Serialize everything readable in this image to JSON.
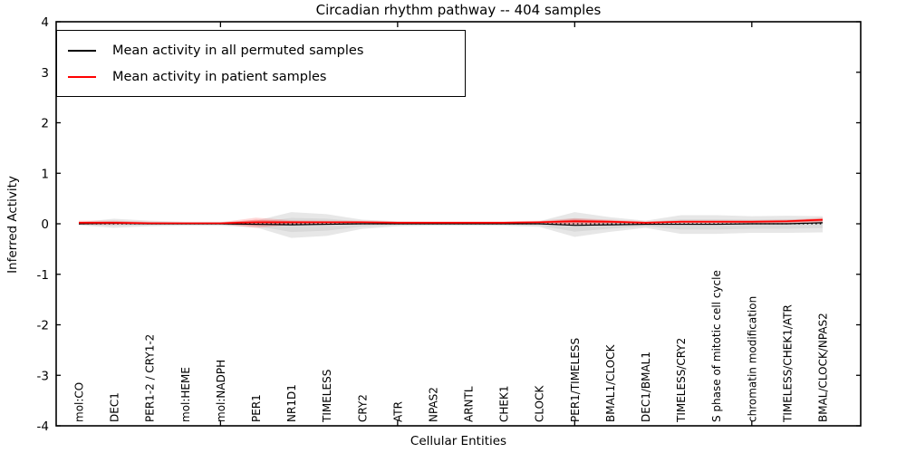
{
  "figure": {
    "title": "Circadian rhythm pathway -- 404 samples",
    "xlabel": "Cellular Entities",
    "ylabel": "Inferred Activity"
  },
  "legend": {
    "items": [
      {
        "label": "Mean activity in all permuted samples",
        "color": "#000000"
      },
      {
        "label": "Mean activity in patient samples",
        "color": "#ff0000"
      }
    ]
  },
  "chart_data": {
    "type": "line",
    "title": "Circadian rhythm pathway -- 404 samples",
    "xlabel": "Cellular Entities",
    "ylabel": "Inferred Activity",
    "ylim": [
      -4,
      4
    ],
    "yticks": [
      -4,
      -3,
      -2,
      -1,
      0,
      1,
      2,
      3,
      4
    ],
    "grid": false,
    "legend_position": "upper left",
    "categories": [
      "mol:CO",
      "DEC1",
      "PER1-2 / CRY1-2",
      "mol:HEME",
      "mol:NADPH",
      "PER1",
      "NR1D1",
      "TIMELESS",
      "CRY2",
      "ATR",
      "NPAS2",
      "ARNTL",
      "CHEK1",
      "CLOCK",
      "PER1/TIMELESS",
      "BMAL1/CLOCK",
      "DEC1/BMAL1",
      "TIMELESS/CRY2",
      "S phase of mitotic cell cycle",
      "chromatin modification",
      "TIMELESS/CHEK1/ATR",
      "BMAL/CLOCK/NPAS2"
    ],
    "series": [
      {
        "name": "Mean activity in all permuted samples",
        "color": "#000000",
        "values": [
          0.0,
          0.01,
          0.0,
          0.0,
          0.0,
          -0.01,
          -0.02,
          -0.01,
          0.0,
          0.0,
          0.0,
          0.0,
          0.0,
          0.0,
          -0.03,
          -0.02,
          -0.01,
          -0.01,
          -0.01,
          0.0,
          0.0,
          0.02
        ]
      },
      {
        "name": "Mean activity in patient samples",
        "color": "#ff0000",
        "values": [
          0.02,
          0.02,
          0.01,
          0.01,
          0.01,
          0.03,
          0.03,
          0.03,
          0.03,
          0.02,
          0.02,
          0.02,
          0.02,
          0.03,
          0.05,
          0.04,
          0.02,
          0.04,
          0.04,
          0.04,
          0.05,
          0.08
        ]
      }
    ],
    "bands": [
      {
        "name": "permuted-std-band",
        "color": "#e7e7e7",
        "inner_color": "#d9d9d9",
        "upper": [
          0.03,
          0.1,
          0.06,
          0.04,
          0.04,
          0.06,
          0.23,
          0.19,
          0.08,
          0.05,
          0.04,
          0.04,
          0.04,
          0.05,
          0.23,
          0.13,
          0.06,
          0.17,
          0.17,
          0.15,
          0.16,
          0.15
        ],
        "lower": [
          -0.03,
          -0.08,
          -0.05,
          -0.04,
          -0.04,
          -0.07,
          -0.28,
          -0.24,
          -0.1,
          -0.05,
          -0.04,
          -0.04,
          -0.04,
          -0.06,
          -0.26,
          -0.16,
          -0.08,
          -0.2,
          -0.2,
          -0.18,
          -0.18,
          -0.17
        ]
      },
      {
        "name": "patient-std-band",
        "color": "rgba(255,0,0,0.16)",
        "inner_color": "rgba(255,0,0,0.30)",
        "upper": [
          0.06,
          0.06,
          0.04,
          0.03,
          0.03,
          0.12,
          0.07,
          0.06,
          0.06,
          0.05,
          0.05,
          0.05,
          0.05,
          0.06,
          0.11,
          0.08,
          0.05,
          0.07,
          0.07,
          0.07,
          0.08,
          0.12
        ],
        "lower": [
          -0.02,
          -0.02,
          -0.01,
          -0.01,
          -0.01,
          -0.08,
          -0.02,
          -0.01,
          0.0,
          0.0,
          0.0,
          0.0,
          0.0,
          0.0,
          -0.02,
          0.0,
          0.0,
          0.01,
          0.01,
          0.01,
          0.01,
          0.03
        ]
      }
    ],
    "zero_line": {
      "value": 0,
      "color": "#000000",
      "style": "dotted"
    },
    "x_numeric_tick_indices": [
      4,
      9,
      14,
      19
    ]
  }
}
